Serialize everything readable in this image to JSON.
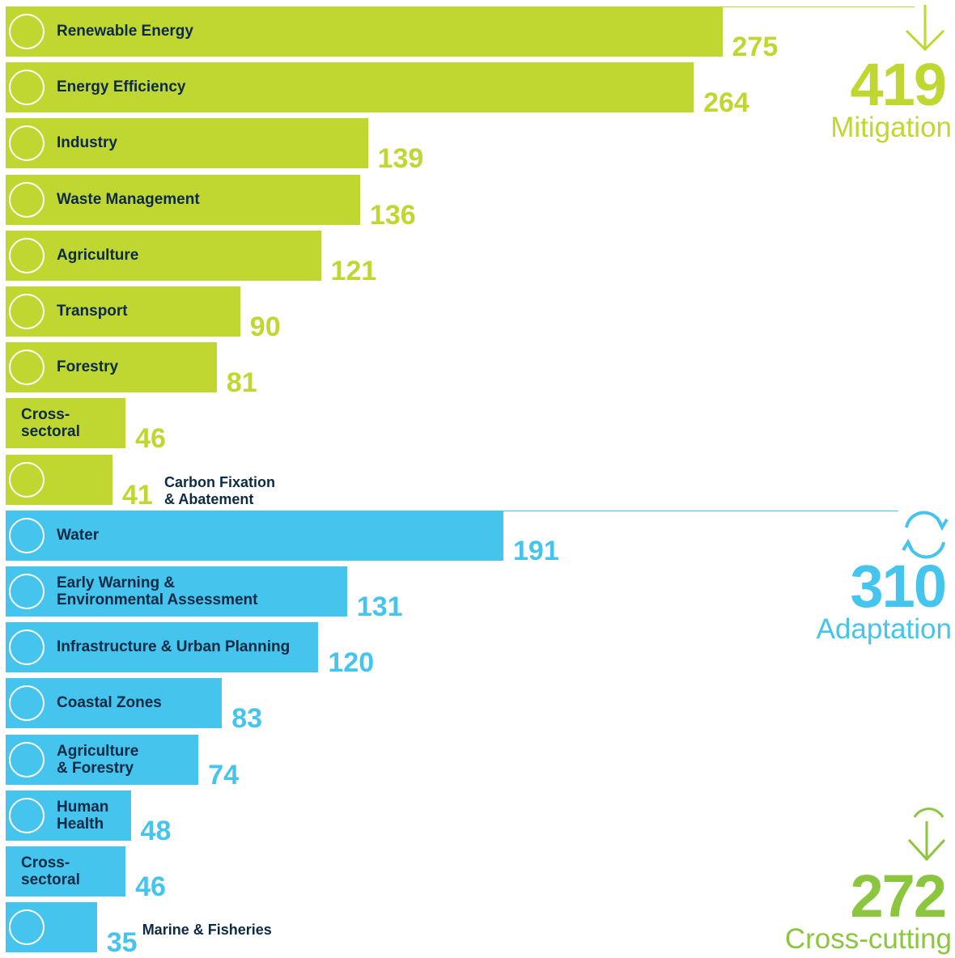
{
  "chart_data": {
    "type": "bar",
    "series": [
      {
        "name": "Mitigation",
        "total": 419,
        "color": "#c0d732",
        "categories": [
          "Renewable Energy",
          "Energy Efficiency",
          "Industry",
          "Waste Management",
          "Agriculture",
          "Transport",
          "Forestry",
          "Cross-\nsectoral",
          "Carbon Fixation\n& Abatement"
        ],
        "values": [
          275,
          264,
          139,
          136,
          121,
          90,
          81,
          46,
          41
        ]
      },
      {
        "name": "Adaptation",
        "total": 310,
        "color": "#45c4ee",
        "categories": [
          "Water",
          "Early Warning &\nEnvironmental Assessment",
          "Infrastructure & Urban Planning",
          "Coastal Zones",
          "Agriculture\n& Forestry",
          "Human\nHealth",
          "Cross-\nsectoral",
          "Marine & Fisheries"
        ],
        "values": [
          191,
          131,
          120,
          83,
          74,
          48,
          46,
          35
        ]
      }
    ],
    "extra_totals": [
      {
        "name": "Cross-cutting",
        "total": 272,
        "color": "#8cc63f"
      }
    ]
  }
}
